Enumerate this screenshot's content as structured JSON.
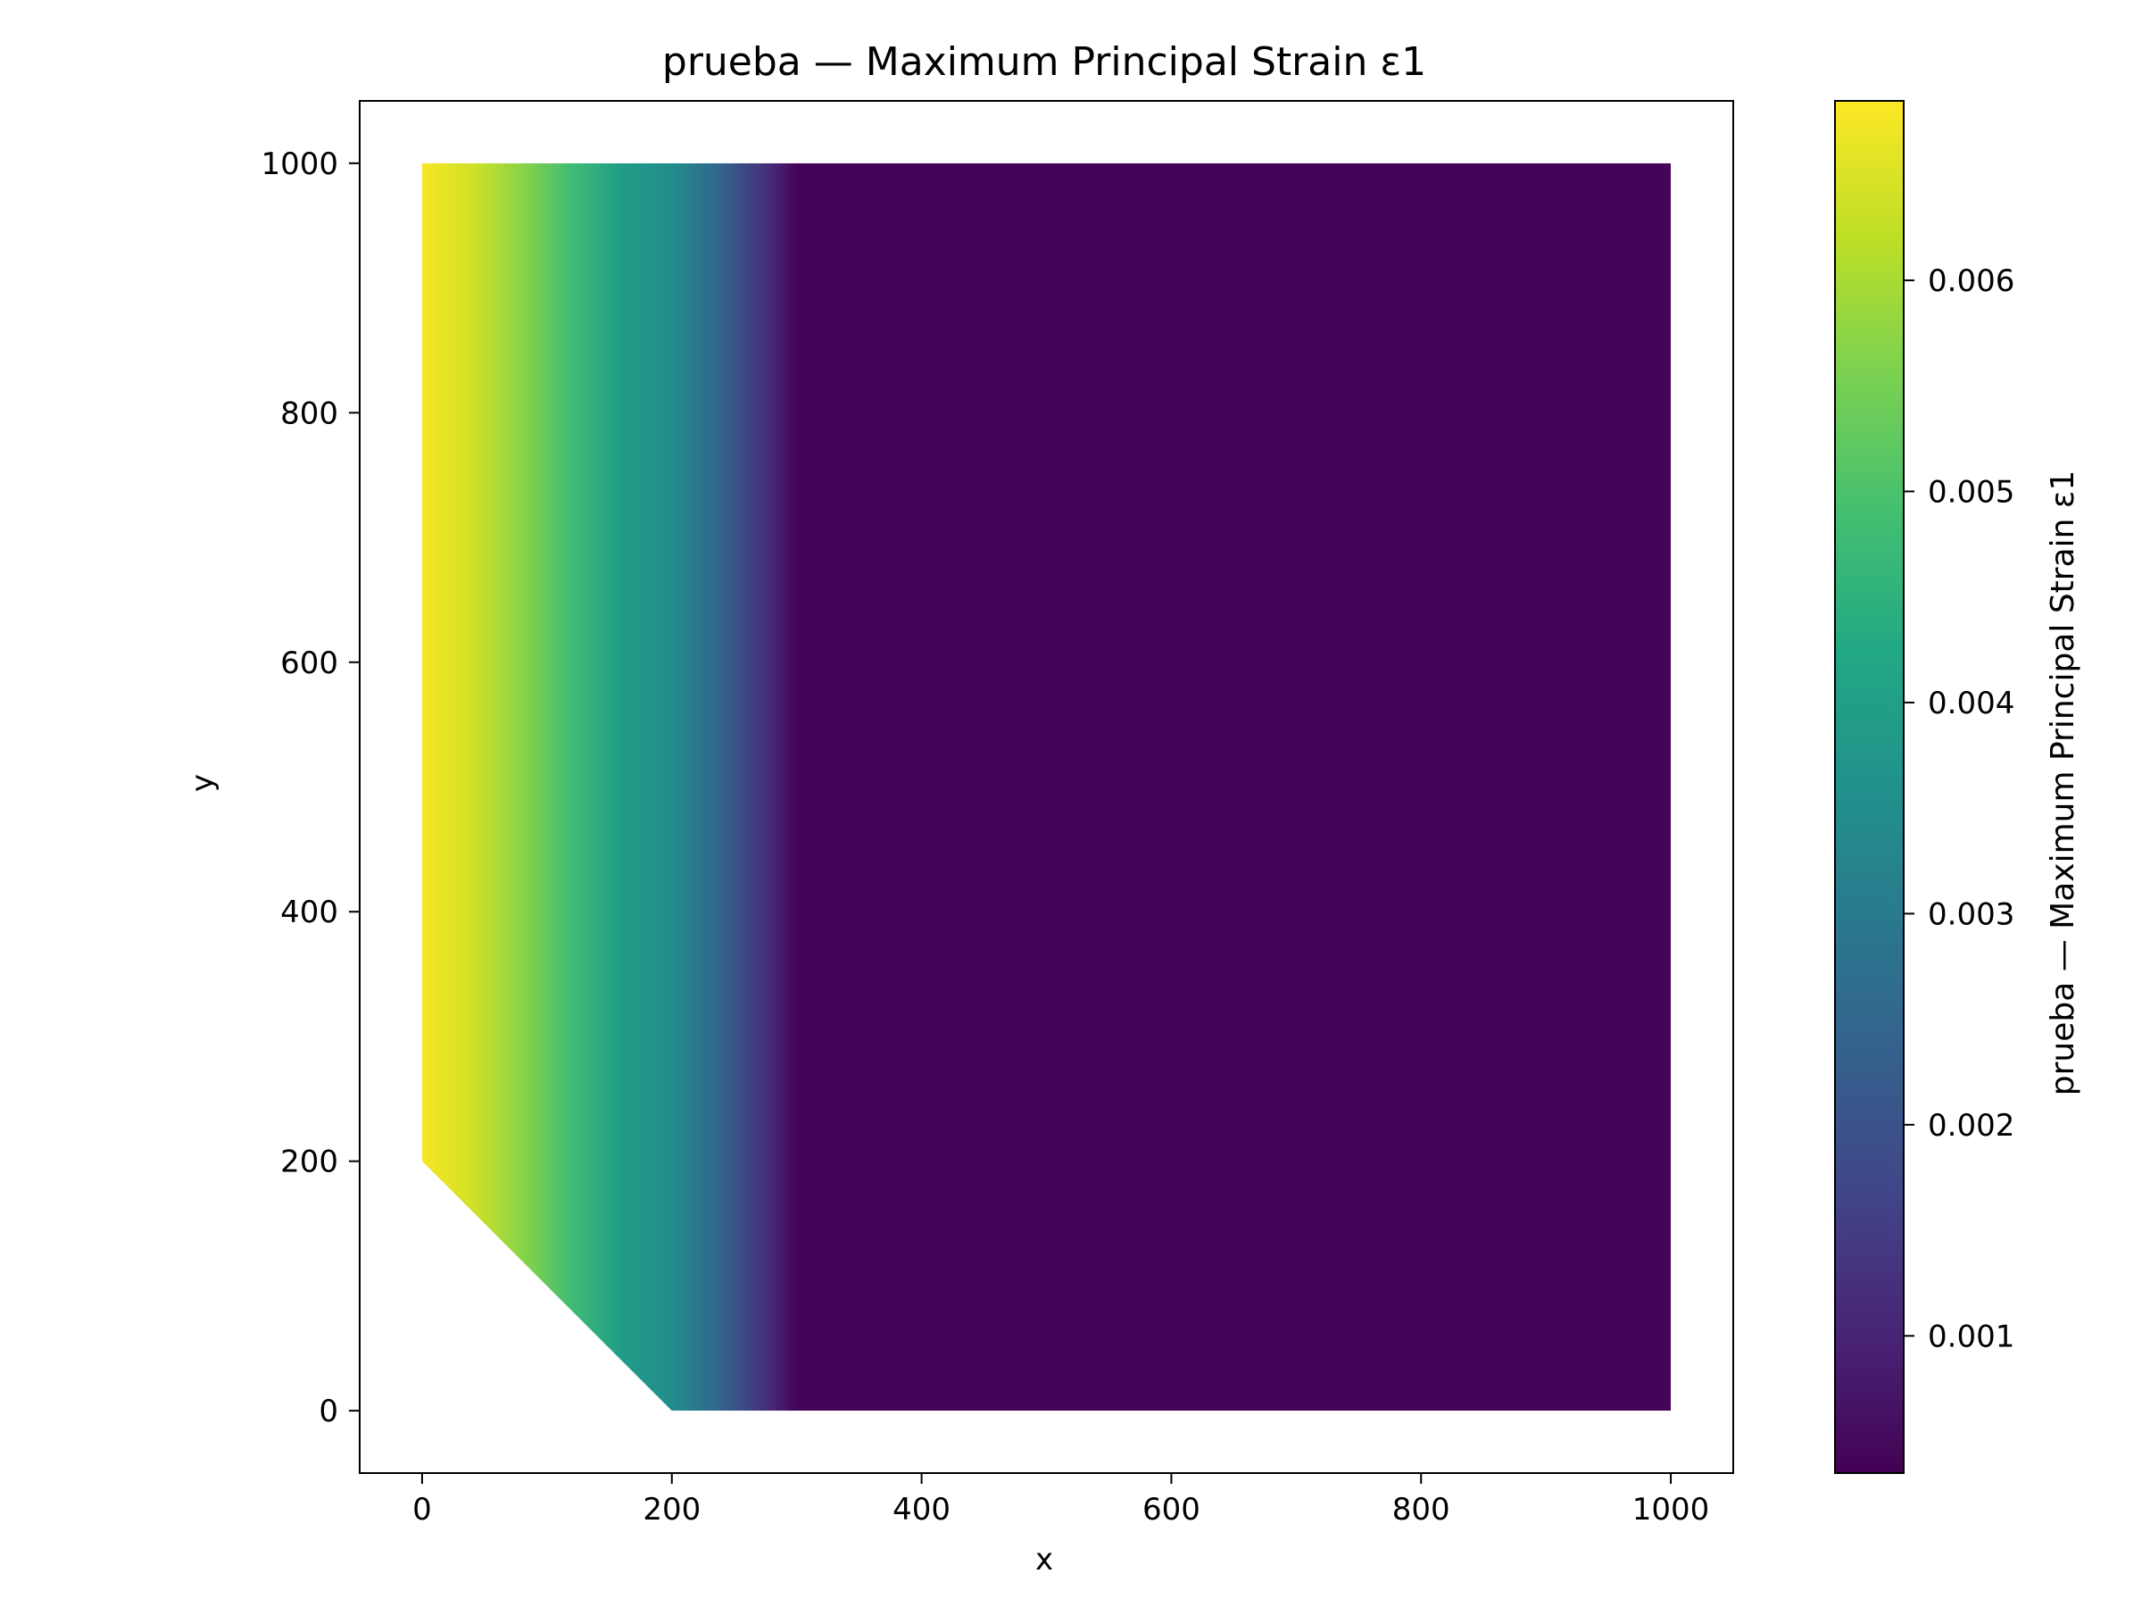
{
  "chart_data": {
    "type": "heatmap",
    "title": "prueba — Maximum Principal Strain ε1",
    "xlabel": "x",
    "ylabel": "y",
    "xlim": [
      -50,
      1050
    ],
    "ylim": [
      -50,
      1050
    ],
    "xticks": [
      0,
      200,
      400,
      600,
      800,
      1000
    ],
    "yticks": [
      0,
      200,
      400,
      600,
      800,
      1000
    ],
    "domain_polygon": [
      [
        0,
        200
      ],
      [
        0,
        1000
      ],
      [
        1000,
        1000
      ],
      [
        1000,
        0
      ],
      [
        200,
        0
      ]
    ],
    "field_profile_along_x": {
      "x": [
        0,
        40,
        80,
        120,
        160,
        200,
        240,
        280,
        300,
        1000
      ],
      "value": [
        0.0068,
        0.0064,
        0.0057,
        0.0048,
        0.0039,
        0.0035,
        0.0024,
        0.0011,
        0.0004,
        0.0004
      ]
    },
    "colormap": "viridis",
    "colorbar": {
      "label": "prueba — Maximum Principal Strain ε1",
      "range": [
        0.00035,
        0.00685
      ],
      "ticks": [
        0.001,
        0.002,
        0.003,
        0.004,
        0.005,
        0.006
      ],
      "ticklabels": [
        "0.001",
        "0.002",
        "0.003",
        "0.004",
        "0.005",
        "0.006"
      ]
    },
    "grid": false
  }
}
